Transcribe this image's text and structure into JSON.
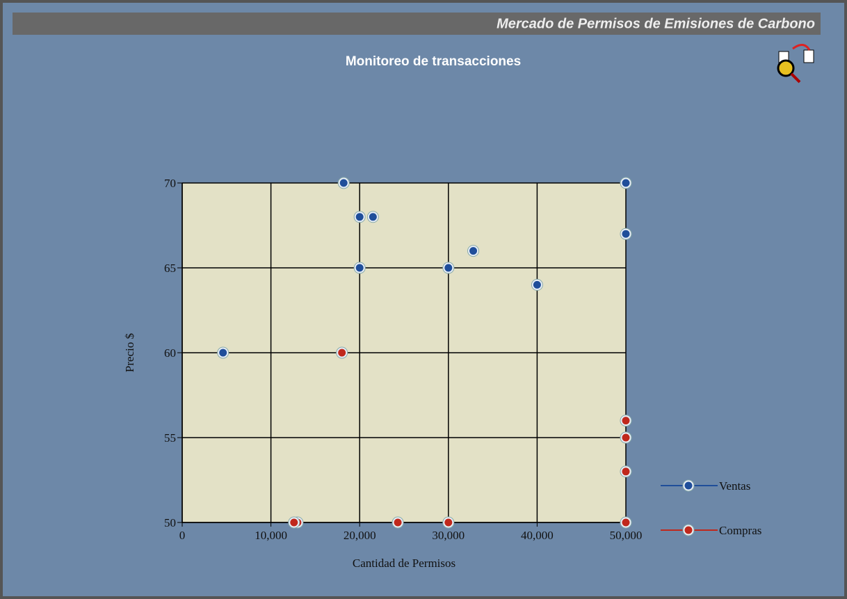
{
  "header": {
    "title": "Mercado de Permisos de Emisiones de Carbono"
  },
  "chart_data": {
    "type": "scatter",
    "title": "Monitoreo de transacciones",
    "x_label": "Cantidad de Permisos",
    "y_label": "Precio $",
    "xlim": [
      0,
      50000
    ],
    "ylim": [
      50,
      70
    ],
    "xticks": [
      0,
      {
        "value": 10000,
        "label": "10,000"
      },
      {
        "value": 20000,
        "label": "20,000"
      },
      {
        "value": 30000,
        "label": "30,000"
      },
      {
        "value": 40000,
        "label": "40,000"
      },
      {
        "value": 50000,
        "label": "50,000"
      }
    ],
    "yticks": [
      50,
      55,
      60,
      65,
      70
    ],
    "grid": true,
    "legend": "right",
    "series": [
      {
        "name": "Ventas",
        "color": "#1f4e9a",
        "x": [
          18200,
          50000,
          20000,
          21500,
          50000,
          32800,
          20000,
          30000,
          40000,
          4600
        ],
        "values": [
          70,
          70,
          68,
          68,
          67,
          66,
          65,
          65,
          64,
          60
        ]
      },
      {
        "name": "Compras",
        "color": "#c0281c",
        "x": [
          18000,
          50000,
          50000,
          50000,
          50000,
          30000,
          24300,
          13000,
          12600
        ],
        "values": [
          60,
          56,
          55,
          53,
          50,
          50,
          50,
          50,
          50
        ]
      }
    ]
  }
}
